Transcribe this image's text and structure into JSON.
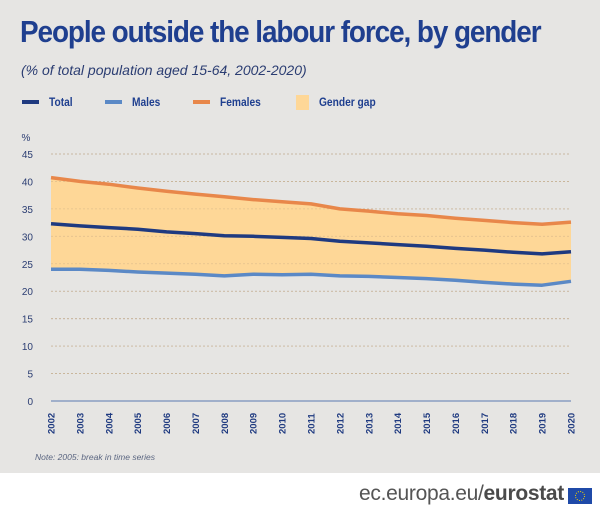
{
  "header": {
    "title": "People outside the labour force, by gender",
    "subtitle": "(% of total population aged 15-64, 2002-2020)"
  },
  "legend": [
    {
      "label": "Total",
      "color": "#1f3a80",
      "kind": "line"
    },
    {
      "label": "Males",
      "color": "#5b89c6",
      "kind": "line"
    },
    {
      "label": "Females",
      "color": "#e8874a",
      "kind": "line"
    },
    {
      "label": "Gender gap",
      "color": "#fed797",
      "kind": "area"
    }
  ],
  "chart_data": {
    "type": "line",
    "title": "People outside the labour force, by gender",
    "subtitle": "(% of total population aged 15-64, 2002-2020)",
    "ylabel": "%",
    "xlabel": "",
    "ylim": [
      0,
      45
    ],
    "yticks": [
      "0",
      "5",
      "10",
      "15",
      "20",
      "25",
      "30",
      "35",
      "40",
      "45"
    ],
    "grid": true,
    "legend_position": "top-left",
    "categories": [
      "2002",
      "2003",
      "2004",
      "2005",
      "2006",
      "2007",
      "2008",
      "2009",
      "2010",
      "2011",
      "2012",
      "2013",
      "2014",
      "2015",
      "2016",
      "2017",
      "2018",
      "2019",
      "2020"
    ],
    "series": [
      {
        "name": "Total",
        "color": "#1f3a80",
        "values": [
          32.3,
          31.9,
          31.6,
          31.3,
          30.8,
          30.5,
          30.1,
          30.0,
          29.8,
          29.6,
          29.1,
          28.8,
          28.5,
          28.2,
          27.8,
          27.5,
          27.1,
          26.8,
          27.2
        ]
      },
      {
        "name": "Males",
        "color": "#5b89c6",
        "values": [
          24.0,
          24.0,
          23.8,
          23.5,
          23.3,
          23.1,
          22.8,
          23.1,
          23.0,
          23.1,
          22.8,
          22.7,
          22.5,
          22.3,
          22.0,
          21.6,
          21.3,
          21.1,
          21.8
        ]
      },
      {
        "name": "Females",
        "color": "#e8874a",
        "values": [
          40.7,
          40.0,
          39.5,
          38.8,
          38.2,
          37.7,
          37.2,
          36.7,
          36.3,
          35.9,
          35.0,
          34.6,
          34.1,
          33.8,
          33.3,
          32.9,
          32.5,
          32.2,
          32.6
        ]
      }
    ],
    "area": {
      "name": "Gender gap",
      "color": "#fed797",
      "between": [
        "Males",
        "Females"
      ]
    },
    "note": "Note: 2005: break in time series"
  },
  "footer": {
    "site_prefix": "ec.europa.eu/",
    "site_brand": "eurostat"
  }
}
